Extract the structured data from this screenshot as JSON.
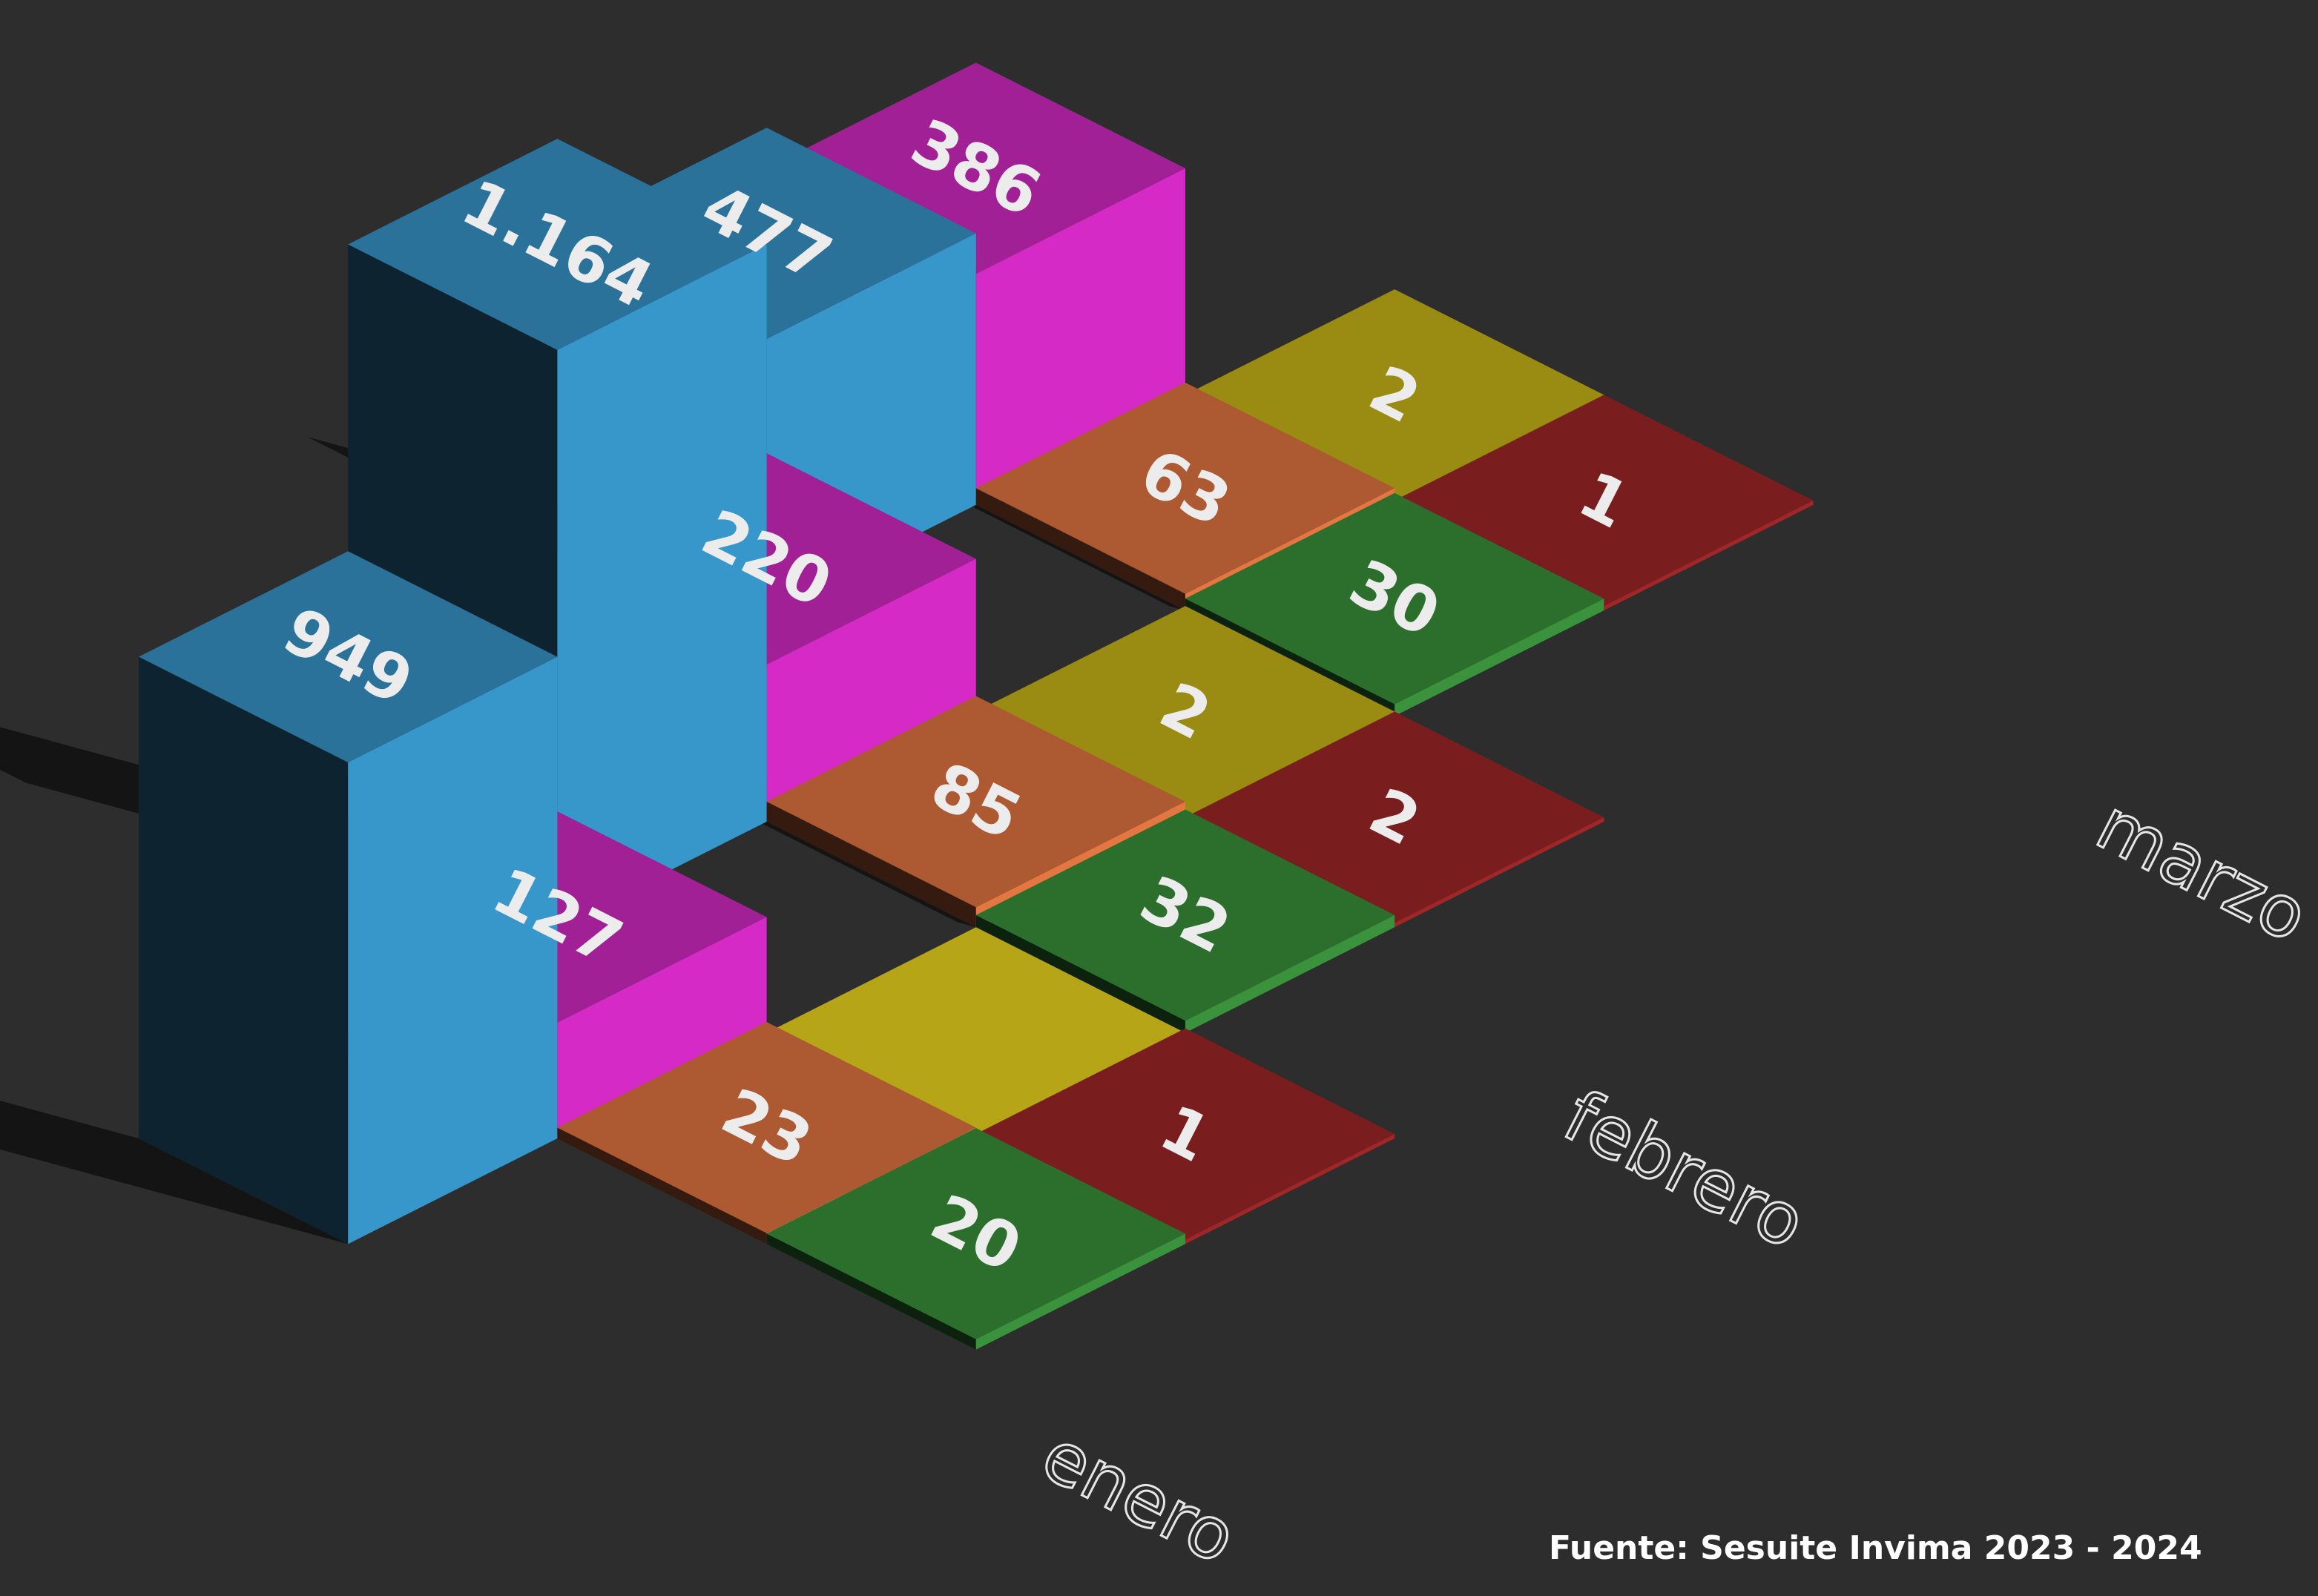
{
  "chart_data": {
    "type": "bar",
    "categories": [
      "enero",
      "febrero",
      "marzo"
    ],
    "series": [
      {
        "color": "#3a9fd6",
        "values": [
          "949",
          "1.164",
          "477"
        ],
        "numeric": [
          949,
          1164,
          477
        ]
      },
      {
        "color": "#e02ccf",
        "values": [
          "127",
          "220",
          "386"
        ],
        "numeric": [
          127,
          220,
          386
        ]
      },
      {
        "color": "#f07c45",
        "values": [
          "23",
          "85",
          "63"
        ],
        "numeric": [
          23,
          85,
          63
        ]
      },
      {
        "color": "#3d9a3f",
        "values": [
          "20",
          "32",
          "30"
        ],
        "numeric": [
          20,
          32,
          30
        ]
      },
      {
        "color": "#d6c21b",
        "values": [
          "",
          "2",
          "2"
        ],
        "numeric": [
          0,
          2,
          2
        ]
      },
      {
        "color": "#a8282a",
        "values": [
          "1",
          "2",
          "1"
        ],
        "numeric": [
          1,
          2,
          1
        ]
      }
    ],
    "background": "#2d2d2d",
    "source": "Fuente: Sesuite Invima 2023 - 2024"
  }
}
